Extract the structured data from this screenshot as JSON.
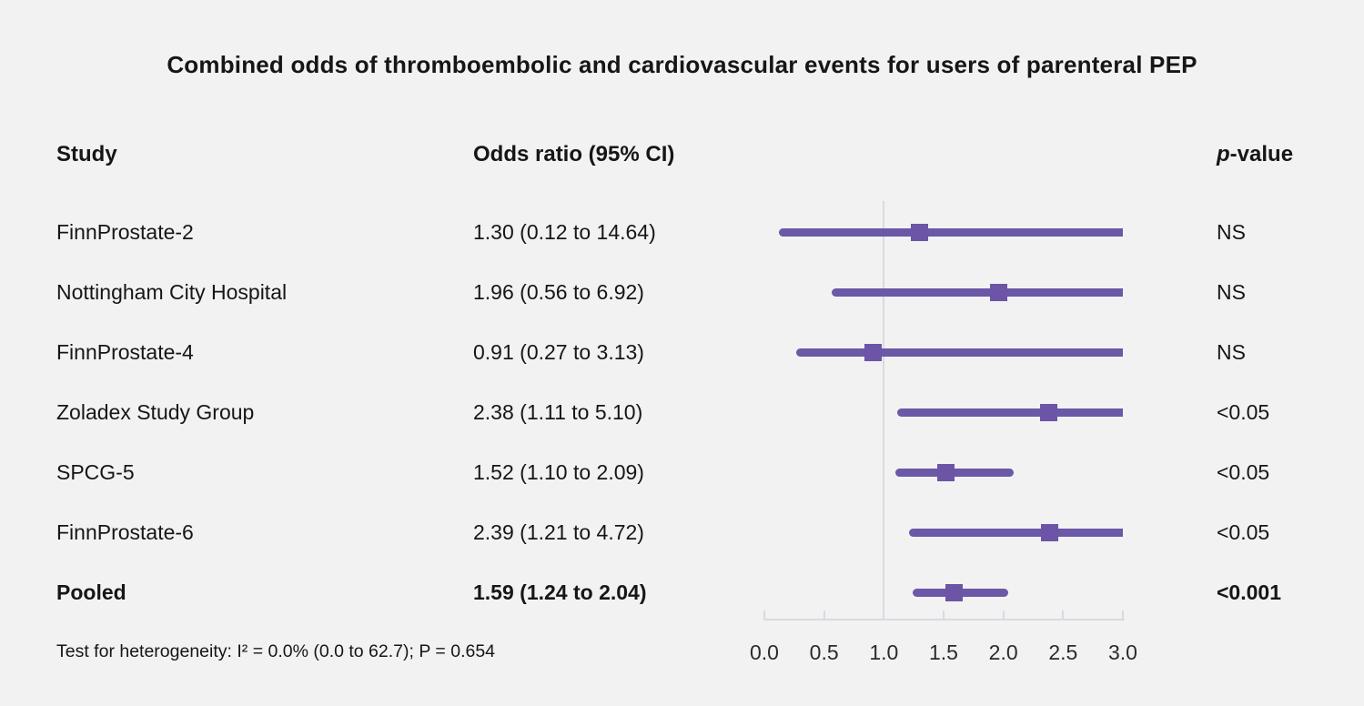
{
  "title": "Combined odds of thromboembolic and cardiovascular events for users of parenteral PEP",
  "columns": {
    "study": "Study",
    "odds_ratio": "Odds ratio (95% CI)",
    "pvalue_prefix": "p",
    "pvalue_suffix": "-value"
  },
  "footer": "Test for heterogeneity: I² = 0.0% (0.0 to 62.7); P = 0.654",
  "colors": {
    "background": "#f2f2f2",
    "ci_line": "#6b58a7",
    "marker": "#6c54a6",
    "axis": "#d7dbe0",
    "text": "#161616"
  },
  "chart_data": {
    "type": "forest",
    "xlim": [
      0.0,
      3.0
    ],
    "reference_line": 1.0,
    "tick_labels": [
      "0.0",
      "0.5",
      "1.0",
      "1.5",
      "2.0",
      "2.5",
      "3.0"
    ],
    "tick_values": [
      0.0,
      0.5,
      1.0,
      1.5,
      2.0,
      2.5,
      3.0
    ],
    "legend_position": "none",
    "grid": false,
    "rows": [
      {
        "study": "FinnProstate-2",
        "or_label": "1.30 (0.12 to 14.64)",
        "estimate": 1.3,
        "ci_low": 0.12,
        "ci_high": 14.64,
        "p": "NS",
        "bold": false
      },
      {
        "study": "Nottingham City Hospital",
        "or_label": "1.96 (0.56 to 6.92)",
        "estimate": 1.96,
        "ci_low": 0.56,
        "ci_high": 6.92,
        "p": "NS",
        "bold": false
      },
      {
        "study": "FinnProstate-4",
        "or_label": "0.91 (0.27 to 3.13)",
        "estimate": 0.91,
        "ci_low": 0.27,
        "ci_high": 3.13,
        "p": "NS",
        "bold": false
      },
      {
        "study": "Zoladex Study Group",
        "or_label": "2.38 (1.11 to 5.10)",
        "estimate": 2.38,
        "ci_low": 1.11,
        "ci_high": 5.1,
        "p": "<0.05",
        "bold": false
      },
      {
        "study": "SPCG-5",
        "or_label": "1.52 (1.10 to 2.09)",
        "estimate": 1.52,
        "ci_low": 1.1,
        "ci_high": 2.09,
        "p": "<0.05",
        "bold": false
      },
      {
        "study": "FinnProstate-6",
        "or_label": "2.39 (1.21 to 4.72)",
        "estimate": 2.39,
        "ci_low": 1.21,
        "ci_high": 4.72,
        "p": "<0.05",
        "bold": false
      },
      {
        "study": "Pooled",
        "or_label": "1.59 (1.24 to 2.04)",
        "estimate": 1.59,
        "ci_low": 1.24,
        "ci_high": 2.04,
        "p": "<0.001",
        "bold": true
      }
    ]
  }
}
